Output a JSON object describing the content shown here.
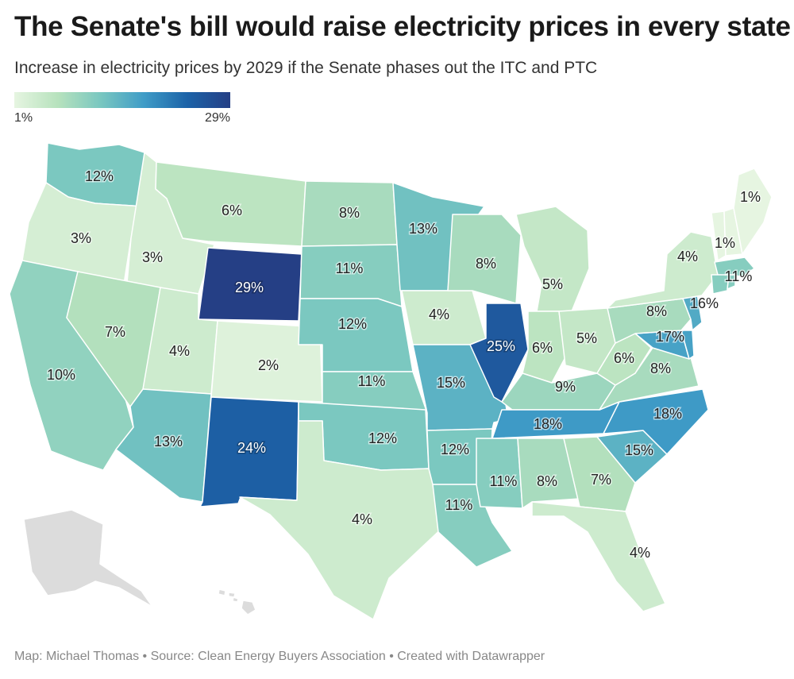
{
  "header": {
    "title": "The Senate's bill would raise electricity prices in every state",
    "subtitle": "Increase in electricity prices by 2029 if the Senate phases out the ITC and PTC"
  },
  "legend": {
    "min_label": "1%",
    "max_label": "29%",
    "min_value": 1,
    "max_value": 29
  },
  "colors": {
    "no_data": "#dcdcdc",
    "scale": [
      "#e6f5e1",
      "#b7e2bd",
      "#79c7c0",
      "#3f9cc7",
      "#1c63a8",
      "#253f85"
    ]
  },
  "map_data": {
    "type": "choropleth",
    "unit": "%",
    "states": [
      {
        "id": "WA",
        "name": "Washington",
        "value": 12,
        "label": "12%"
      },
      {
        "id": "OR",
        "name": "Oregon",
        "value": 3,
        "label": "3%"
      },
      {
        "id": "CA",
        "name": "California",
        "value": 10,
        "label": "10%"
      },
      {
        "id": "ID",
        "name": "Idaho",
        "value": 3,
        "label": "3%"
      },
      {
        "id": "NV",
        "name": "Nevada",
        "value": 7,
        "label": "7%"
      },
      {
        "id": "MT",
        "name": "Montana",
        "value": 6,
        "label": "6%"
      },
      {
        "id": "WY",
        "name": "Wyoming",
        "value": 29,
        "label": "29%"
      },
      {
        "id": "UT",
        "name": "Utah",
        "value": 4,
        "label": "4%"
      },
      {
        "id": "AZ",
        "name": "Arizona",
        "value": 13,
        "label": "13%"
      },
      {
        "id": "CO",
        "name": "Colorado",
        "value": 2,
        "label": "2%"
      },
      {
        "id": "NM",
        "name": "New Mexico",
        "value": 24,
        "label": "24%"
      },
      {
        "id": "ND",
        "name": "North Dakota",
        "value": 8,
        "label": "8%"
      },
      {
        "id": "SD",
        "name": "South Dakota",
        "value": 11,
        "label": "11%"
      },
      {
        "id": "NE",
        "name": "Nebraska",
        "value": 12,
        "label": "12%"
      },
      {
        "id": "KS",
        "name": "Kansas",
        "value": 11,
        "label": "11%"
      },
      {
        "id": "OK",
        "name": "Oklahoma",
        "value": 12,
        "label": "12%"
      },
      {
        "id": "TX",
        "name": "Texas",
        "value": 4,
        "label": "4%"
      },
      {
        "id": "MN",
        "name": "Minnesota",
        "value": 13,
        "label": "13%"
      },
      {
        "id": "IA",
        "name": "Iowa",
        "value": 4,
        "label": "4%"
      },
      {
        "id": "MO",
        "name": "Missouri",
        "value": 15,
        "label": "15%"
      },
      {
        "id": "AR",
        "name": "Arkansas",
        "value": 12,
        "label": "12%"
      },
      {
        "id": "LA",
        "name": "Louisiana",
        "value": 11,
        "label": "11%"
      },
      {
        "id": "WI",
        "name": "Wisconsin",
        "value": 8,
        "label": "8%"
      },
      {
        "id": "IL",
        "name": "Illinois",
        "value": 25,
        "label": "25%"
      },
      {
        "id": "MI",
        "name": "Michigan",
        "value": 5,
        "label": "5%"
      },
      {
        "id": "IN",
        "name": "Indiana",
        "value": 6,
        "label": "6%"
      },
      {
        "id": "OH",
        "name": "Ohio",
        "value": 5,
        "label": "5%"
      },
      {
        "id": "KY",
        "name": "Kentucky",
        "value": 9,
        "label": "9%"
      },
      {
        "id": "TN",
        "name": "Tennessee",
        "value": 18,
        "label": "18%"
      },
      {
        "id": "MS",
        "name": "Mississippi",
        "value": 11,
        "label": "11%"
      },
      {
        "id": "AL",
        "name": "Alabama",
        "value": 8,
        "label": "8%"
      },
      {
        "id": "GA",
        "name": "Georgia",
        "value": 7,
        "label": "7%"
      },
      {
        "id": "FL",
        "name": "Florida",
        "value": 4,
        "label": "4%"
      },
      {
        "id": "SC",
        "name": "South Carolina",
        "value": 15,
        "label": "15%"
      },
      {
        "id": "NC",
        "name": "North Carolina",
        "value": 18,
        "label": "18%"
      },
      {
        "id": "VA",
        "name": "Virginia",
        "value": 8,
        "label": "8%"
      },
      {
        "id": "WV",
        "name": "West Virginia",
        "value": 6,
        "label": "6%"
      },
      {
        "id": "MD",
        "name": "Maryland",
        "value": 17,
        "label": "17%"
      },
      {
        "id": "DE",
        "name": "Delaware",
        "value": 17,
        "label": ""
      },
      {
        "id": "PA",
        "name": "Pennsylvania",
        "value": 8,
        "label": "8%"
      },
      {
        "id": "NJ",
        "name": "New Jersey",
        "value": 16,
        "label": "16%"
      },
      {
        "id": "NY",
        "name": "New York",
        "value": 4,
        "label": "4%"
      },
      {
        "id": "VT",
        "name": "Vermont",
        "value": 1,
        "label": ""
      },
      {
        "id": "NH",
        "name": "New Hampshire",
        "value": 1,
        "label": "1%"
      },
      {
        "id": "ME",
        "name": "Maine",
        "value": 1,
        "label": "1%"
      },
      {
        "id": "MA",
        "name": "Massachusetts",
        "value": 11,
        "label": "11%"
      },
      {
        "id": "CT",
        "name": "Connecticut",
        "value": 11,
        "label": ""
      },
      {
        "id": "RI",
        "name": "Rhode Island",
        "value": 11,
        "label": ""
      },
      {
        "id": "AK",
        "name": "Alaska",
        "value": null,
        "label": ""
      },
      {
        "id": "HI",
        "name": "Hawaii",
        "value": null,
        "label": ""
      }
    ]
  },
  "footer": {
    "text": "Map: Michael Thomas • Source: Clean Energy Buyers Association  • Created with Datawrapper"
  }
}
